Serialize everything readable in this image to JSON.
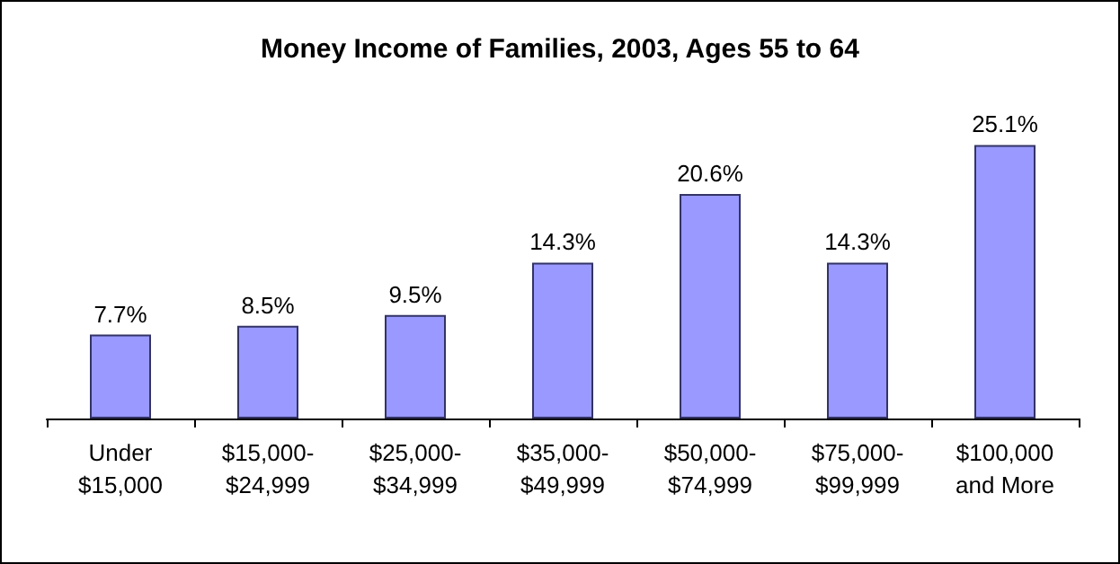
{
  "chart_data": {
    "type": "bar",
    "title": "Money Income of Families, 2003, Ages 55 to 64",
    "categories": [
      "Under\n$15,000",
      "$15,000-\n$24,999",
      "$25,000-\n$34,999",
      "$35,000-\n$49,999",
      "$50,000-\n$74,999",
      "$75,000-\n$99,999",
      "$100,000\nand More"
    ],
    "values": [
      7.7,
      8.5,
      9.5,
      14.3,
      20.6,
      14.3,
      25.1
    ],
    "color": "#9999ff",
    "value_labels": [
      "7.7%",
      "8.5%",
      "9.5%",
      "14.3%",
      "20.6%",
      "14.3%",
      "25.1%"
    ]
  }
}
